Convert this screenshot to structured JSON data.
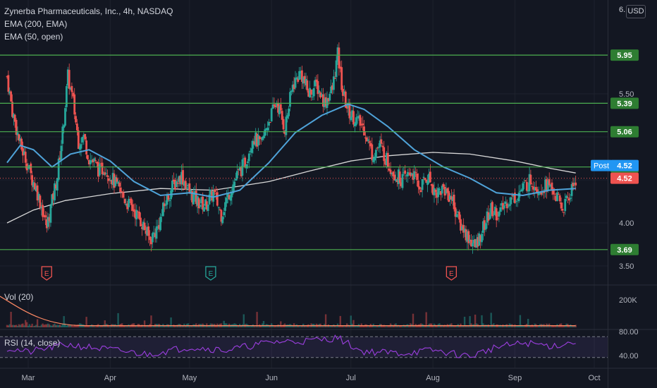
{
  "legend": {
    "title": "Zynerba Pharmaceuticals, Inc., 4h, NASDAQ",
    "ema200": "EMA (200, EMA)",
    "ema50": "EMA (50, open)"
  },
  "top_label": "6.",
  "currency": "USD",
  "post_label": "Post",
  "earnings_marker": "E",
  "colors": {
    "background": "#131722",
    "up": "#26a69a",
    "down": "#ef5350",
    "ema50": "#4fa3d9",
    "ema200": "#d8d8d8",
    "level": "#4caf50",
    "rsi": "#9c3fe0",
    "post": "#2196f3",
    "volume_ma": "#ff8a65"
  },
  "chart_data": [
    {
      "type": "candlestick",
      "title": "Zynerba Pharmaceuticals, Inc., 4h, NASDAQ",
      "x_ticks": [
        "Mar",
        "Apr",
        "May",
        "Jun",
        "Jul",
        "Aug",
        "Sep",
        "Oct"
      ],
      "y_ticks": [
        3.5,
        4.0,
        4.5,
        5.0,
        5.5
      ],
      "y_tick_labels": [
        "3.50",
        "4.00",
        "5.50"
      ],
      "ylim": [
        3.36,
        6.45
      ],
      "levels": [
        {
          "value": 5.95,
          "label": "5.95"
        },
        {
          "value": 5.39,
          "label": "5.39"
        },
        {
          "value": 5.06,
          "label": "5.06"
        },
        {
          "value": 4.65,
          "label": "4.65"
        },
        {
          "value": 3.69,
          "label": "3.69"
        }
      ],
      "post_price": {
        "value": 4.52,
        "label": "4.52"
      },
      "last_price": {
        "value": 4.52,
        "label": "4.52"
      },
      "earnings_dates": [
        "Mar 08",
        "May 09",
        "Aug 08"
      ],
      "close_path": [
        [
          "Feb 21",
          5.7
        ],
        [
          "Feb 23",
          5.3
        ],
        [
          "Feb 26",
          4.9
        ],
        [
          "Feb 28",
          4.75
        ],
        [
          "Mar 02",
          4.55
        ],
        [
          "Mar 04",
          4.4
        ],
        [
          "Mar 06",
          4.2
        ],
        [
          "Mar 08",
          3.95
        ],
        [
          "Mar 10",
          4.25
        ],
        [
          "Mar 12",
          4.55
        ],
        [
          "Mar 14",
          5.05
        ],
        [
          "Mar 16",
          5.7
        ],
        [
          "Mar 18",
          5.4
        ],
        [
          "Mar 20",
          4.95
        ],
        [
          "Mar 22",
          5.0
        ],
        [
          "Mar 24",
          4.75
        ],
        [
          "Mar 26",
          4.7
        ],
        [
          "Mar 28",
          4.6
        ],
        [
          "Mar 30",
          4.65
        ],
        [
          "Apr 01",
          4.55
        ],
        [
          "Apr 04",
          4.4
        ],
        [
          "Apr 07",
          4.25
        ],
        [
          "Apr 10",
          4.15
        ],
        [
          "Apr 13",
          4.0
        ],
        [
          "Apr 16",
          3.8
        ],
        [
          "Apr 19",
          3.95
        ],
        [
          "Apr 22",
          4.25
        ],
        [
          "Apr 25",
          4.45
        ],
        [
          "Apr 28",
          4.55
        ],
        [
          "May 01",
          4.35
        ],
        [
          "May 04",
          4.25
        ],
        [
          "May 07",
          4.2
        ],
        [
          "May 10",
          4.35
        ],
        [
          "May 13",
          4.1
        ],
        [
          "May 16",
          4.35
        ],
        [
          "May 19",
          4.55
        ],
        [
          "May 22",
          4.7
        ],
        [
          "May 25",
          5.0
        ],
        [
          "May 28",
          4.9
        ],
        [
          "May 31",
          5.2
        ],
        [
          "Jun 03",
          5.4
        ],
        [
          "Jun 06",
          5.1
        ],
        [
          "Jun 09",
          5.6
        ],
        [
          "Jun 12",
          5.75
        ],
        [
          "Jun 15",
          5.5
        ],
        [
          "Jun 18",
          5.6
        ],
        [
          "Jun 21",
          5.4
        ],
        [
          "Jun 24",
          5.55
        ],
        [
          "Jun 26",
          5.95
        ],
        [
          "Jun 28",
          5.5
        ],
        [
          "Jun 30",
          5.3
        ],
        [
          "Jul 03",
          5.2
        ],
        [
          "Jul 06",
          5.1
        ],
        [
          "Jul 09",
          4.8
        ],
        [
          "Jul 12",
          4.9
        ],
        [
          "Jul 15",
          4.7
        ],
        [
          "Jul 18",
          4.55
        ],
        [
          "Jul 21",
          4.5
        ],
        [
          "Jul 24",
          4.6
        ],
        [
          "Jul 27",
          4.4
        ],
        [
          "Jul 30",
          4.55
        ],
        [
          "Aug 02",
          4.35
        ],
        [
          "Aug 05",
          4.4
        ],
        [
          "Aug 08",
          4.3
        ],
        [
          "Aug 11",
          4.0
        ],
        [
          "Aug 14",
          3.85
        ],
        [
          "Aug 17",
          3.72
        ],
        [
          "Aug 20",
          3.95
        ],
        [
          "Aug 23",
          4.15
        ],
        [
          "Aug 26",
          4.1
        ],
        [
          "Aug 29",
          4.25
        ],
        [
          "Sep 01",
          4.3
        ],
        [
          "Sep 04",
          4.4
        ],
        [
          "Sep 07",
          4.5
        ],
        [
          "Sep 10",
          4.4
        ],
        [
          "Sep 13",
          4.45
        ],
        [
          "Sep 16",
          4.35
        ],
        [
          "Sep 19",
          4.15
        ],
        [
          "Sep 22",
          4.35
        ],
        [
          "Sep 24",
          4.52
        ]
      ],
      "ema50": [
        [
          "Feb 21",
          4.7
        ],
        [
          "Feb 26",
          4.9
        ],
        [
          "Mar 03",
          4.85
        ],
        [
          "Mar 10",
          4.65
        ],
        [
          "Mar 17",
          4.8
        ],
        [
          "Mar 24",
          4.85
        ],
        [
          "Apr 01",
          4.72
        ],
        [
          "Apr 10",
          4.48
        ],
        [
          "Apr 20",
          4.32
        ],
        [
          "May 01",
          4.35
        ],
        [
          "May 10",
          4.3
        ],
        [
          "May 20",
          4.38
        ],
        [
          "May 31",
          4.7
        ],
        [
          "Jun 10",
          5.05
        ],
        [
          "Jun 20",
          5.25
        ],
        [
          "Jun 30",
          5.38
        ],
        [
          "Jul 06",
          5.32
        ],
        [
          "Jul 15",
          5.12
        ],
        [
          "Jul 25",
          4.85
        ],
        [
          "Aug 05",
          4.65
        ],
        [
          "Aug 15",
          4.52
        ],
        [
          "Aug 25",
          4.35
        ],
        [
          "Sep 04",
          4.32
        ],
        [
          "Sep 14",
          4.38
        ],
        [
          "Sep 24",
          4.4
        ]
      ],
      "ema200": [
        [
          "Feb 21",
          4.0
        ],
        [
          "Mar 03",
          4.15
        ],
        [
          "Mar 15",
          4.26
        ],
        [
          "Apr 01",
          4.34
        ],
        [
          "Apr 20",
          4.4
        ],
        [
          "May 10",
          4.38
        ],
        [
          "May 31",
          4.48
        ],
        [
          "Jun 15",
          4.6
        ],
        [
          "Jul 01",
          4.72
        ],
        [
          "Jul 15",
          4.78
        ],
        [
          "Aug 01",
          4.82
        ],
        [
          "Aug 15",
          4.8
        ],
        [
          "Sep 01",
          4.72
        ],
        [
          "Sep 15",
          4.63
        ],
        [
          "Sep 24",
          4.58
        ]
      ]
    },
    {
      "type": "bar",
      "title": "Vol (20)",
      "y_tick_labels": [
        "200K"
      ],
      "volume_ma_start": 220000,
      "volume_ma_end": 12000,
      "typical_volume": 18000
    },
    {
      "type": "line",
      "title": "RSI (14, close)",
      "y_tick_labels": [
        "80.00",
        "40.00"
      ],
      "bands": [
        70,
        30
      ],
      "ylim": [
        20,
        80
      ],
      "rsi": [
        [
          "Feb 21",
          48
        ],
        [
          "Mar 01",
          40
        ],
        [
          "Mar 15",
          55
        ],
        [
          "Apr 01",
          45
        ],
        [
          "Apr 15",
          36
        ],
        [
          "May 01",
          50
        ],
        [
          "May 15",
          44
        ],
        [
          "Jun 01",
          60
        ],
        [
          "Jun 15",
          62
        ],
        [
          "Jun 26",
          68
        ],
        [
          "Jul 05",
          42
        ],
        [
          "Jul 20",
          38
        ],
        [
          "Aug 01",
          44
        ],
        [
          "Aug 15",
          32
        ],
        [
          "Aug 25",
          50
        ],
        [
          "Sep 05",
          58
        ],
        [
          "Sep 15",
          52
        ],
        [
          "Sep 24",
          60
        ]
      ]
    }
  ]
}
